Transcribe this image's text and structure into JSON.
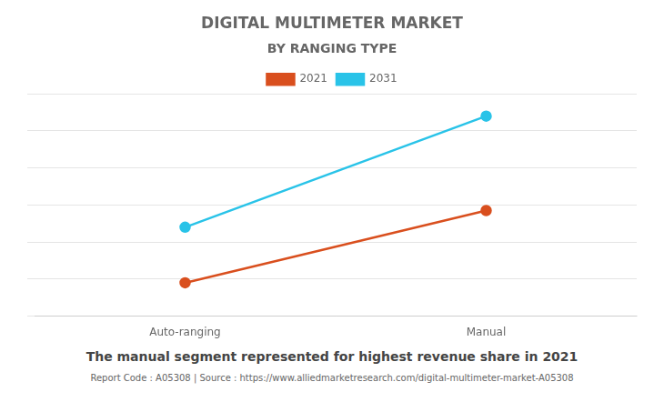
{
  "chart_data": {
    "type": "line",
    "title": "DIGITAL MULTIMETER MARKET",
    "subtitle": "BY RANGING TYPE",
    "categories": [
      "Auto-ranging",
      "Manual"
    ],
    "series": [
      {
        "name": "2021",
        "color": "#D94F1E",
        "marker": "circle",
        "values": [
          1.2,
          3.8
        ]
      },
      {
        "name": "2031",
        "color": "#29C3E8",
        "marker": "circle",
        "values": [
          3.2,
          7.2
        ]
      }
    ],
    "ylim": [
      0,
      8
    ],
    "yticks": [
      0,
      1.3333333333333333,
      2.6666666666666665,
      4,
      5.333333333333333,
      6.666666666666666,
      8
    ],
    "grid": true,
    "legend": "top",
    "tick_labels": "x",
    "annotations": [
      "The manual segment represented for highest revenue share in 2021",
      "Report Code : A05308  |  Source : https://www.alliedmarketresearch.com/digital-multimeter-market-A05308"
    ]
  }
}
